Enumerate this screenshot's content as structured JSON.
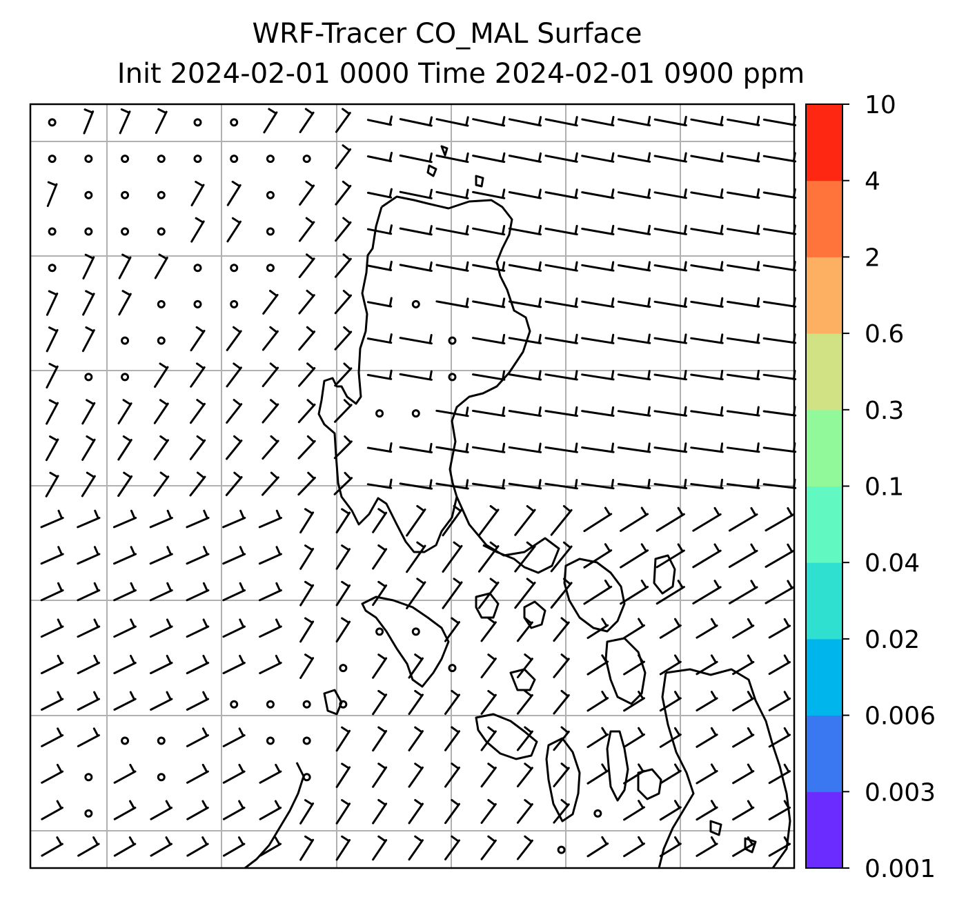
{
  "title": {
    "line1": "WRF-Tracer CO_MAL Surface",
    "line2": "Init 2024-02-01 0000 Time 2024-02-01 0900 ppm"
  },
  "colorbar": {
    "tick_labels": [
      "0.001",
      "0.003",
      "0.006",
      "0.02",
      "0.04",
      "0.1",
      "0.3",
      "0.6",
      "2",
      "4",
      "10"
    ],
    "colors": [
      "#6a2cff",
      "#3a78f2",
      "#00b4ec",
      "#2fe0d0",
      "#62f8c1",
      "#92f99a",
      "#d0e283",
      "#fdb062",
      "#fe743a",
      "#fe2712"
    ]
  },
  "map": {
    "grid_lines": true,
    "frame_color": "#000000",
    "grid_color": "#b0b0b0",
    "field_fill": "#ffffff",
    "features": [
      "coastlines",
      "wind-barbs",
      "calm-circles"
    ]
  }
}
